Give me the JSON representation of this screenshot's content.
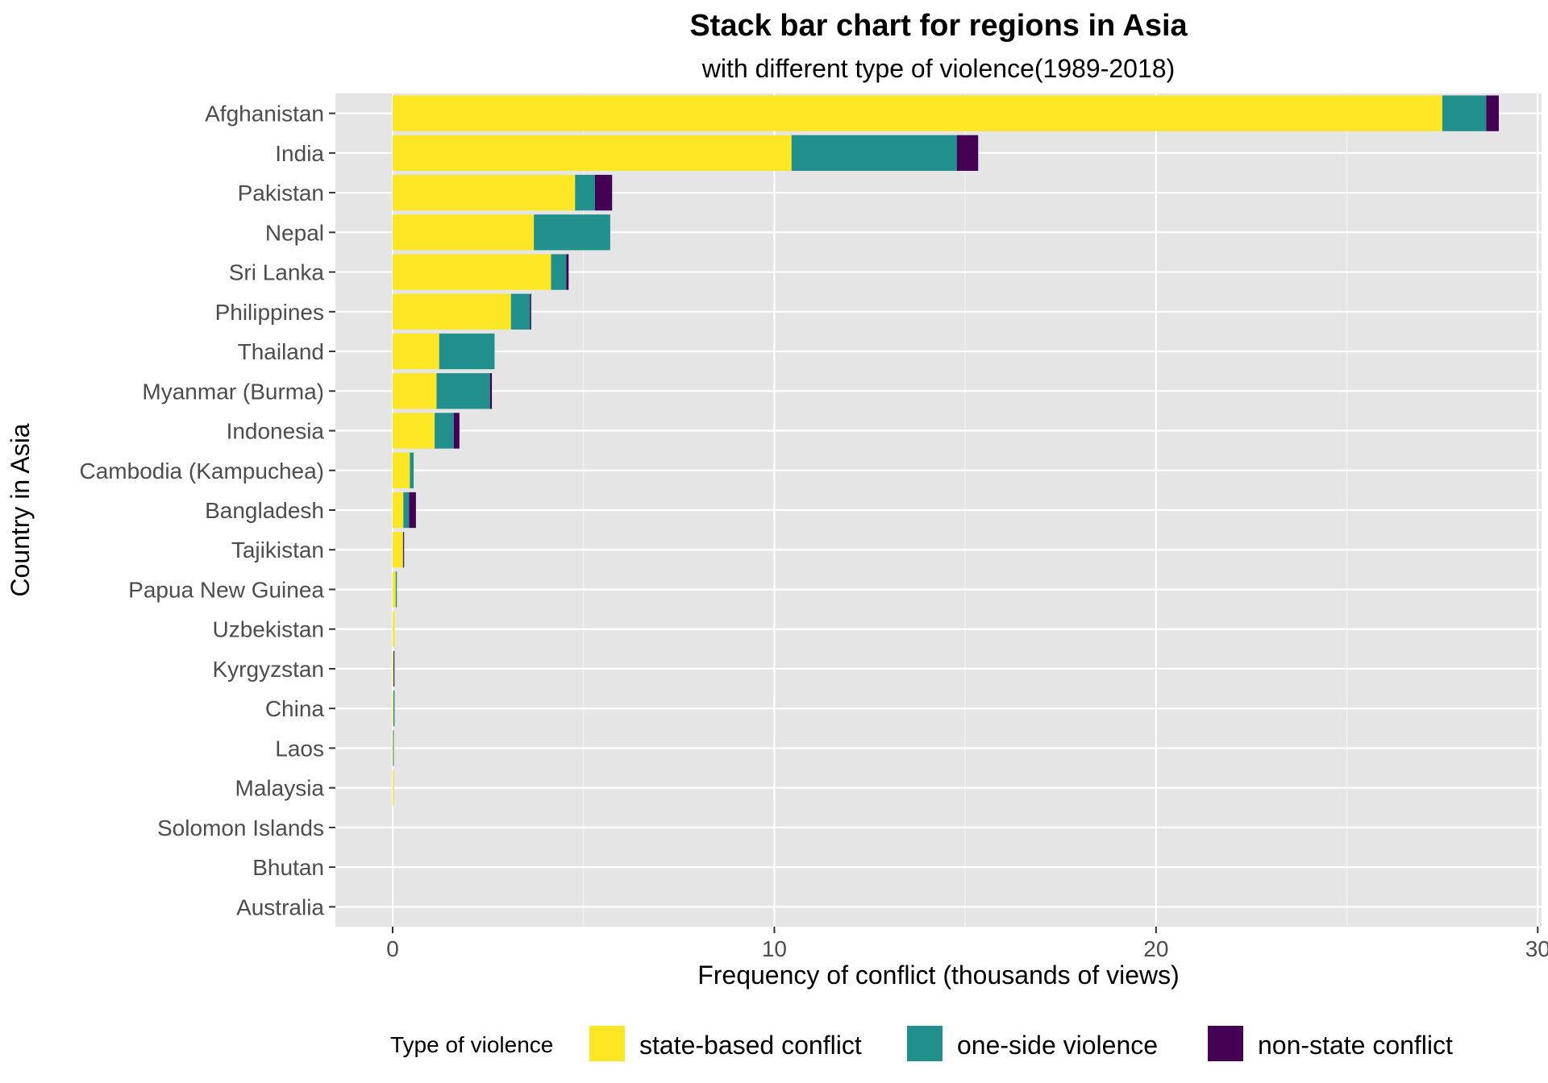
{
  "chart_data": {
    "type": "bar",
    "orientation": "horizontal",
    "stacked": true,
    "title": "Stack bar chart for regions in Asia",
    "subtitle": "with different type of violence(1989-2018)",
    "xlabel": "Frequency of conflict (thousands of views)",
    "ylabel": "Country in Asia",
    "xlim": [
      -1.5,
      30.1
    ],
    "xticks": [
      0,
      10,
      20,
      30
    ],
    "xtick_labels": [
      "0",
      "10",
      "20",
      "30"
    ],
    "grid": true,
    "legend": {
      "title": "Type of violence",
      "position": "bottom"
    },
    "categories": [
      "Afghanistan",
      "India",
      "Pakistan",
      "Nepal",
      "Sri Lanka",
      "Philippines",
      "Thailand",
      "Myanmar (Burma)",
      "Indonesia",
      "Cambodia (Kampuchea)",
      "Bangladesh",
      "Tajikistan",
      "Papua New Guinea",
      "Uzbekistan",
      "Kyrgyzstan",
      "China",
      "Laos",
      "Malaysia",
      "Solomon Islands",
      "Bhutan",
      "Australia"
    ],
    "series": [
      {
        "name": "state-based conflict",
        "color": "#FDE725",
        "values": [
          27.5,
          10.45,
          4.78,
          3.7,
          4.15,
          3.1,
          1.22,
          1.15,
          1.1,
          0.45,
          0.28,
          0.27,
          0.08,
          0.05,
          0.02,
          0.02,
          0.01,
          0.03,
          0.0,
          0.0,
          0.0
        ]
      },
      {
        "name": "one-side violence",
        "color": "#21908C",
        "values": [
          1.15,
          4.33,
          0.52,
          2.0,
          0.4,
          0.5,
          1.45,
          1.4,
          0.5,
          0.1,
          0.15,
          0.01,
          0.03,
          0.0,
          0.01,
          0.03,
          0.02,
          0.0,
          0.0,
          0.0,
          0.0
        ]
      },
      {
        "name": "non-state conflict",
        "color": "#440154",
        "values": [
          0.33,
          0.56,
          0.45,
          0.0,
          0.06,
          0.03,
          0.0,
          0.05,
          0.15,
          0.0,
          0.18,
          0.02,
          0.0,
          0.0,
          0.01,
          0.0,
          0.0,
          0.0,
          0.0,
          0.0,
          0.0
        ]
      }
    ]
  }
}
